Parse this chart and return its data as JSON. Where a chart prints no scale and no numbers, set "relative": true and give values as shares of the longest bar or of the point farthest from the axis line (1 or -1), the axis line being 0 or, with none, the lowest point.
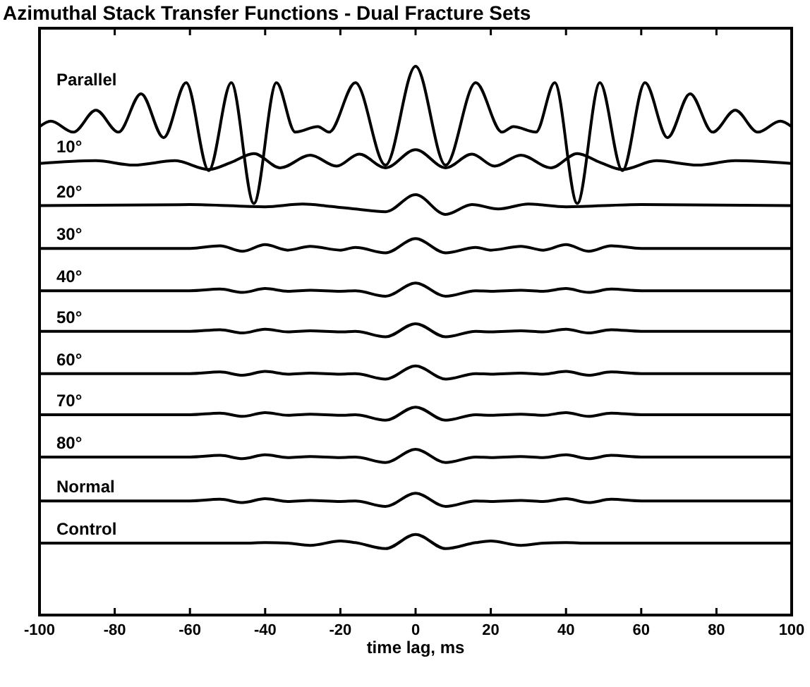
{
  "chart_data": {
    "type": "line",
    "title": "Azimuthal Stack Transfer Functions - Dual Fracture Sets",
    "xlabel": "time lag, ms",
    "relative": true,
    "xlim": [
      -100,
      100
    ],
    "xticks": [
      -100,
      -80,
      -60,
      -40,
      -20,
      0,
      20,
      40,
      60,
      80,
      100
    ],
    "grid": false,
    "marker": "none",
    "line_style": "solid",
    "x": [
      -100,
      -60,
      -52,
      -46,
      -40,
      -34,
      -28,
      -20,
      -16,
      -8,
      0,
      8,
      16,
      20,
      28,
      34,
      40,
      46,
      52,
      60,
      100
    ],
    "series": [
      {
        "name": "Parallel",
        "color": "#000000",
        "x": [
          -100,
          -97,
          -91,
          -85,
          -79,
          -73,
          -67,
          -61,
          -55,
          -49,
          -43,
          -37,
          -32,
          -26,
          -23,
          -16,
          -8,
          0,
          8,
          16,
          23,
          26,
          32,
          37,
          43,
          49,
          55,
          61,
          67,
          73,
          79,
          85,
          91,
          97,
          100
        ],
        "values": [
          0.89,
          0.9,
          0.88,
          0.92,
          0.88,
          0.95,
          0.87,
          0.97,
          0.81,
          0.97,
          0.75,
          0.97,
          0.88,
          0.89,
          0.88,
          0.97,
          0.82,
          1.0,
          0.82,
          0.97,
          0.88,
          0.89,
          0.88,
          0.97,
          0.75,
          0.97,
          0.81,
          0.97,
          0.87,
          0.95,
          0.88,
          0.92,
          0.88,
          0.9,
          0.89
        ]
      },
      {
        "name": "10°",
        "color": "#000000",
        "x": [
          -100,
          -85,
          -75,
          -64,
          -55,
          -49,
          -43,
          -36,
          -28,
          -21,
          -15,
          -8,
          0,
          8,
          15,
          21,
          28,
          36,
          43,
          49,
          55,
          64,
          75,
          85,
          100
        ],
        "values": [
          0.823,
          0.828,
          0.82,
          0.828,
          0.812,
          0.825,
          0.841,
          0.815,
          0.838,
          0.818,
          0.84,
          0.815,
          0.848,
          0.815,
          0.84,
          0.818,
          0.838,
          0.815,
          0.841,
          0.825,
          0.812,
          0.828,
          0.82,
          0.828,
          0.823
        ]
      },
      {
        "name": "20°",
        "color": "#000000",
        "x": [
          -100,
          -60,
          -40,
          -30,
          -23,
          -16,
          -8,
          0,
          8,
          15,
          22,
          30,
          40,
          60,
          100
        ],
        "values": [
          0.746,
          0.748,
          0.744,
          0.749,
          0.745,
          0.74,
          0.735,
          0.766,
          0.73,
          0.748,
          0.74,
          0.749,
          0.744,
          0.748,
          0.746
        ]
      },
      {
        "name": "30°",
        "color": "#000000",
        "values": [
          0.668,
          0.668,
          0.673,
          0.663,
          0.675,
          0.665,
          0.672,
          0.665,
          0.67,
          0.66,
          0.686,
          0.66,
          0.67,
          0.665,
          0.672,
          0.665,
          0.675,
          0.663,
          0.673,
          0.668,
          0.668
        ]
      },
      {
        "name": "40°",
        "color": "#000000",
        "values": [
          0.591,
          0.591,
          0.594,
          0.588,
          0.595,
          0.59,
          0.592,
          0.59,
          0.591,
          0.581,
          0.605,
          0.581,
          0.591,
          0.59,
          0.592,
          0.59,
          0.595,
          0.588,
          0.594,
          0.591,
          0.591
        ]
      },
      {
        "name": "50°",
        "color": "#000000",
        "values": [
          0.517,
          0.517,
          0.52,
          0.514,
          0.521,
          0.516,
          0.518,
          0.516,
          0.517,
          0.507,
          0.531,
          0.507,
          0.517,
          0.516,
          0.518,
          0.516,
          0.521,
          0.514,
          0.52,
          0.517,
          0.517
        ]
      },
      {
        "name": "60°",
        "color": "#000000",
        "values": [
          0.44,
          0.44,
          0.443,
          0.437,
          0.444,
          0.439,
          0.441,
          0.439,
          0.44,
          0.43,
          0.454,
          0.43,
          0.44,
          0.439,
          0.441,
          0.439,
          0.444,
          0.437,
          0.443,
          0.44,
          0.44
        ]
      },
      {
        "name": "70°",
        "color": "#000000",
        "values": [
          0.365,
          0.365,
          0.368,
          0.362,
          0.369,
          0.364,
          0.366,
          0.364,
          0.365,
          0.355,
          0.379,
          0.355,
          0.365,
          0.364,
          0.366,
          0.364,
          0.369,
          0.362,
          0.368,
          0.365,
          0.365
        ]
      },
      {
        "name": "80°",
        "color": "#000000",
        "values": [
          0.288,
          0.288,
          0.291,
          0.285,
          0.292,
          0.287,
          0.289,
          0.287,
          0.288,
          0.278,
          0.302,
          0.278,
          0.288,
          0.287,
          0.289,
          0.287,
          0.292,
          0.285,
          0.291,
          0.288,
          0.288
        ]
      },
      {
        "name": "Normal",
        "color": "#000000",
        "values": [
          0.208,
          0.208,
          0.211,
          0.205,
          0.212,
          0.207,
          0.209,
          0.207,
          0.208,
          0.198,
          0.222,
          0.198,
          0.208,
          0.207,
          0.209,
          0.207,
          0.212,
          0.205,
          0.211,
          0.208,
          0.208
        ]
      },
      {
        "name": "Control",
        "color": "#000000",
        "values": [
          0.131,
          0.131,
          0.131,
          0.131,
          0.132,
          0.131,
          0.127,
          0.135,
          0.132,
          0.121,
          0.147,
          0.121,
          0.132,
          0.135,
          0.127,
          0.131,
          0.132,
          0.131,
          0.131,
          0.131,
          0.131
        ]
      }
    ]
  }
}
